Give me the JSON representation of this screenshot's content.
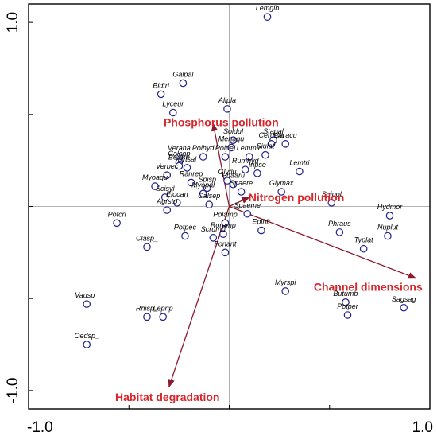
{
  "chart_data": {
    "type": "scatter",
    "subtype": "ordination biplot",
    "title": "",
    "xlabel": "",
    "ylabel": "",
    "xlim": [
      -1.0,
      1.0
    ],
    "ylim": [
      -1.1,
      1.1
    ],
    "x_tick_labels": [
      {
        "value": -1.0,
        "label": "-1.0"
      },
      {
        "value": 1.0,
        "label": "1.0"
      }
    ],
    "y_tick_labels": [
      {
        "value": 1.0,
        "label": "1.0"
      },
      {
        "value": -1.0,
        "label": "-1.0"
      }
    ],
    "minor_tick_values": [
      -0.5,
      0,
      0.5
    ],
    "zero_lines": true,
    "colors": {
      "points": "#1f1f8f",
      "arrows": "#8b1a2e",
      "env_labels": "#d7262b",
      "frame": "#000000",
      "zero_lines": "#9a9a9a"
    },
    "species": [
      {
        "label": "Lemgib",
        "x": 0.19,
        "y": 1.03
      },
      {
        "label": "Galpal",
        "x": -0.23,
        "y": 0.67
      },
      {
        "label": "Bidtri",
        "x": -0.34,
        "y": 0.61
      },
      {
        "label": "Lyceur",
        "x": -0.28,
        "y": 0.51
      },
      {
        "label": "Alipla",
        "x": -0.01,
        "y": 0.53
      },
      {
        "label": "Soldul",
        "x": 0.02,
        "y": 0.36
      },
      {
        "label": "Stapal",
        "x": 0.22,
        "y": 0.36
      },
      {
        "label": "Cerdem",
        "x": 0.21,
        "y": 0.34
      },
      {
        "label": "Caracu",
        "x": 0.28,
        "y": 0.34
      },
      {
        "label": "Menaqu",
        "x": 0.01,
        "y": 0.32
      },
      {
        "label": "Polhyd",
        "x": -0.13,
        "y": 0.27
      },
      {
        "label": "Polpel",
        "x": -0.02,
        "y": 0.27
      },
      {
        "label": "Lemmin",
        "x": 0.1,
        "y": 0.27
      },
      {
        "label": "Siulat",
        "x": 0.18,
        "y": 0.28
      },
      {
        "label": "Verana",
        "x": -0.25,
        "y": 0.27
      },
      {
        "label": "Calcop",
        "x": -0.25,
        "y": 0.24
      },
      {
        "label": "Berere",
        "x": -0.25,
        "y": 0.22
      },
      {
        "label": "Lytsal",
        "x": -0.21,
        "y": 0.21
      },
      {
        "label": "Verbec",
        "x": -0.31,
        "y": 0.17
      },
      {
        "label": "Rumhyd",
        "x": 0.08,
        "y": 0.2
      },
      {
        "label": "Iripse",
        "x": 0.14,
        "y": 0.18
      },
      {
        "label": "Lemtri",
        "x": 0.35,
        "y": 0.19
      },
      {
        "label": "Ranrep",
        "x": -0.19,
        "y": 0.13
      },
      {
        "label": "Spisp",
        "x": -0.11,
        "y": 0.1
      },
      {
        "label": "Glyflu",
        "x": -0.01,
        "y": 0.14
      },
      {
        "label": "Phaaru",
        "x": 0.02,
        "y": 0.12
      },
      {
        "label": "Myoaqu",
        "x": -0.37,
        "y": 0.11
      },
      {
        "label": "Myopal",
        "x": -0.13,
        "y": 0.07
      },
      {
        "label": "Glymax",
        "x": 0.26,
        "y": 0.08
      },
      {
        "label": "Spaere",
        "x": 0.06,
        "y": 0.08
      },
      {
        "label": "Scisyl",
        "x": -0.32,
        "y": 0.05
      },
      {
        "label": "Elocan",
        "x": -0.26,
        "y": 0.02
      },
      {
        "label": "Calsep",
        "x": -0.1,
        "y": 0.01
      },
      {
        "label": "Spipol",
        "x": 0.51,
        "y": 0.02
      },
      {
        "label": "Agrsto",
        "x": -0.31,
        "y": -0.02
      },
      {
        "label": "Spaeme",
        "x": 0.09,
        "y": -0.04
      },
      {
        "label": "Hydmor",
        "x": 0.8,
        "y": -0.05
      },
      {
        "label": "Potcri",
        "x": -0.56,
        "y": -0.09
      },
      {
        "label": "Polamp",
        "x": -0.02,
        "y": -0.09
      },
      {
        "label": "Roramp",
        "x": -0.03,
        "y": -0.15
      },
      {
        "label": "Epihir",
        "x": 0.16,
        "y": -0.13
      },
      {
        "label": "Phraus",
        "x": 0.55,
        "y": -0.14
      },
      {
        "label": "Potpec",
        "x": -0.22,
        "y": -0.16
      },
      {
        "label": "Scrumb",
        "x": -0.08,
        "y": -0.17
      },
      {
        "label": "Nuplut",
        "x": 0.79,
        "y": -0.16
      },
      {
        "label": "Clasp_",
        "x": -0.41,
        "y": -0.22
      },
      {
        "label": "Typlat",
        "x": 0.67,
        "y": -0.23
      },
      {
        "label": "Fonant",
        "x": -0.02,
        "y": -0.25
      },
      {
        "label": "Myrspi",
        "x": 0.28,
        "y": -0.46
      },
      {
        "label": "Butumb",
        "x": 0.58,
        "y": -0.52
      },
      {
        "label": "Vausp_",
        "x": -0.71,
        "y": -0.53
      },
      {
        "label": "Sagsag",
        "x": 0.87,
        "y": -0.55
      },
      {
        "label": "Potper",
        "x": 0.59,
        "y": -0.59
      },
      {
        "label": "Rhisp_",
        "x": -0.41,
        "y": -0.6
      },
      {
        "label": "Leprip",
        "x": -0.33,
        "y": -0.6
      },
      {
        "label": "Oedsp_",
        "x": -0.71,
        "y": -0.75
      }
    ],
    "environmental_vectors": [
      {
        "label": "Phosphorus pollution",
        "x": -0.08,
        "y": 0.45,
        "label_position": "above-left"
      },
      {
        "label": "Nitrogen pollution",
        "x": 0.1,
        "y": 0.05,
        "label_position": "right"
      },
      {
        "label": "Channel dimensions",
        "x": 0.93,
        "y": -0.39,
        "label_position": "below"
      },
      {
        "label": "Habitat degradation",
        "x": -0.3,
        "y": -0.98,
        "label_position": "below"
      }
    ]
  }
}
